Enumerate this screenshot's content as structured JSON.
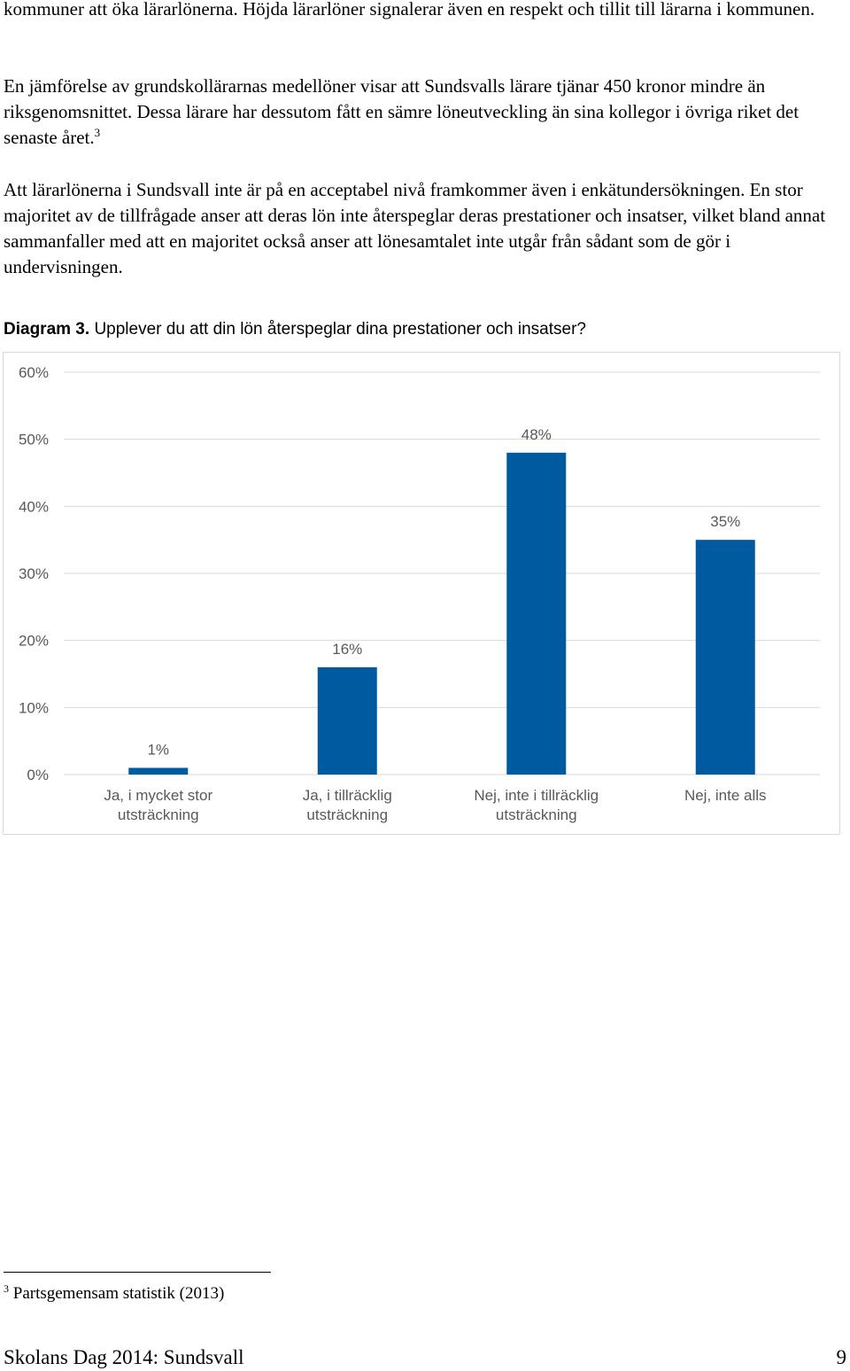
{
  "body": {
    "paragraph1": "kommuner att öka lärarlönerna. Höjda lärarlöner signalerar även en respekt och tillit till lärarna i kommunen.",
    "paragraph2": "En jämförelse av grundskollärarnas medellöner visar att Sundsvalls lärare tjänar 450 kronor mindre än riksgenomsnittet. Dessa lärare har dessutom fått en sämre löneutveckling än sina kollegor i övriga riket det senaste året.",
    "paragraph2_footnote_ref": "3",
    "paragraph3": "Att lärarlönerna i Sundsvall inte är på en acceptabel nivå framkommer även i enkätundersökningen. En stor majoritet av de tillfrågade anser att deras lön inte återspeglar deras prestationer och insatser, vilket bland annat sammanfaller med att en majoritet också anser att lönesamtalet inte utgår från sådant som de gör i undervisningen."
  },
  "diagram": {
    "label": "Diagram 3.",
    "question": "Upplever du att din lön återspeglar dina prestationer och insatser?"
  },
  "chart_data": {
    "type": "bar",
    "title": "Diagram 3. Upplever du att din lön återspeglar dina prestationer och insatser?",
    "categories": [
      [
        "Ja, i mycket stor",
        "utsträckning"
      ],
      [
        "Ja, i tillräcklig",
        "utsträckning"
      ],
      [
        "Nej, inte i tillräcklig",
        "utsträckning"
      ],
      [
        "Nej, inte alls"
      ]
    ],
    "values": [
      1,
      16,
      48,
      35
    ],
    "data_labels": [
      "1%",
      "16%",
      "48%",
      "35%"
    ],
    "ylim": [
      0,
      60
    ],
    "yticks": [
      0,
      10,
      20,
      30,
      40,
      50,
      60
    ],
    "ytick_labels": [
      "0%",
      "10%",
      "20%",
      "30%",
      "40%",
      "50%",
      "60%"
    ],
    "grid": true,
    "legend": "none",
    "bar_color": "#005aa0",
    "grid_color": "#d9d9d9",
    "label_color": "#595959"
  },
  "footnote": {
    "number": "3",
    "text": "Partsgemensam statistik (2013)"
  },
  "footer": {
    "left": "Skolans Dag 2014: Sundsvall",
    "page_number": "9"
  }
}
